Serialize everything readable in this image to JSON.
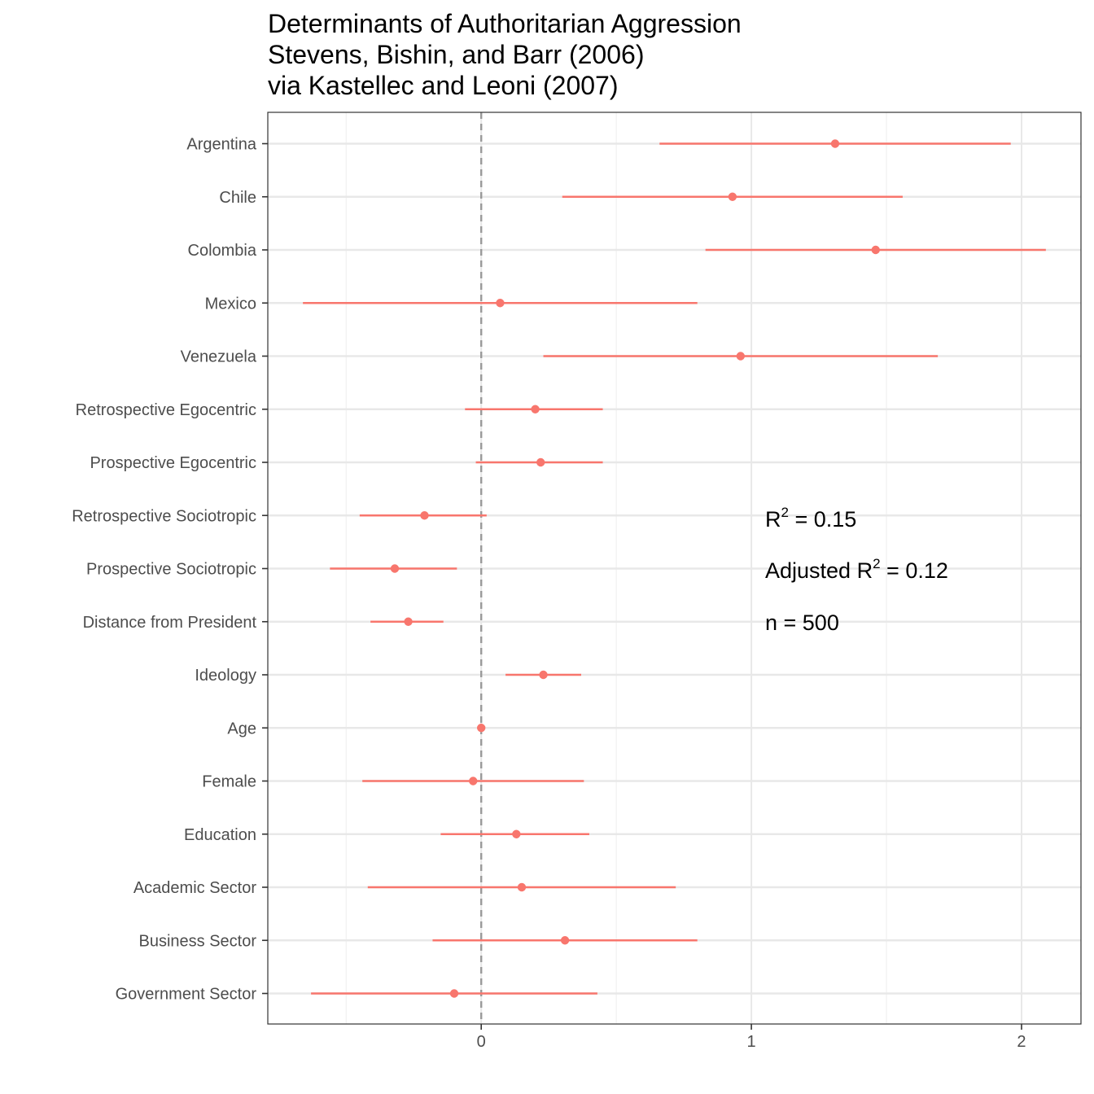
{
  "chart_data": {
    "type": "scatter",
    "subtype": "coefficient-plot",
    "title_lines": [
      "Determinants of Authoritarian Aggression",
      "Stevens, Bishin, and Barr (2006)",
      "via Kastellec and Leoni (2007)"
    ],
    "xlabel": "",
    "ylabel": "",
    "xlim": [
      -0.79,
      2.22
    ],
    "x_ticks": [
      0,
      1,
      2
    ],
    "reference_line": 0,
    "grid": true,
    "point_color": "#F8766D",
    "categories": [
      "Argentina",
      "Chile",
      "Colombia",
      "Mexico",
      "Venezuela",
      "Retrospective Egocentric",
      "Prospective Egocentric",
      "Retrospective Sociotropic",
      "Prospective Sociotropic",
      "Distance from President",
      "Ideology",
      "Age",
      "Female",
      "Education",
      "Academic Sector",
      "Business Sector",
      "Government Sector"
    ],
    "estimates": [
      1.31,
      0.93,
      1.46,
      0.07,
      0.96,
      0.2,
      0.22,
      -0.21,
      -0.32,
      -0.27,
      0.23,
      0.0,
      -0.03,
      0.13,
      0.15,
      0.31,
      -0.1
    ],
    "lower": [
      0.66,
      0.3,
      0.83,
      -0.66,
      0.23,
      -0.06,
      -0.02,
      -0.45,
      -0.56,
      -0.41,
      0.09,
      -0.01,
      -0.44,
      -0.15,
      -0.42,
      -0.18,
      -0.63
    ],
    "upper": [
      1.96,
      1.56,
      2.09,
      0.8,
      1.69,
      0.45,
      0.45,
      0.02,
      -0.09,
      -0.14,
      0.37,
      0.01,
      0.38,
      0.4,
      0.72,
      0.8,
      0.43
    ],
    "annotations": {
      "r2": {
        "prefix": "R",
        "sup": "2",
        "suffix": " = 0.15"
      },
      "adj_r2": {
        "prefix": "Adjusted R",
        "sup": "2",
        "suffix": " = 0.12"
      },
      "n": "n = 500"
    }
  }
}
